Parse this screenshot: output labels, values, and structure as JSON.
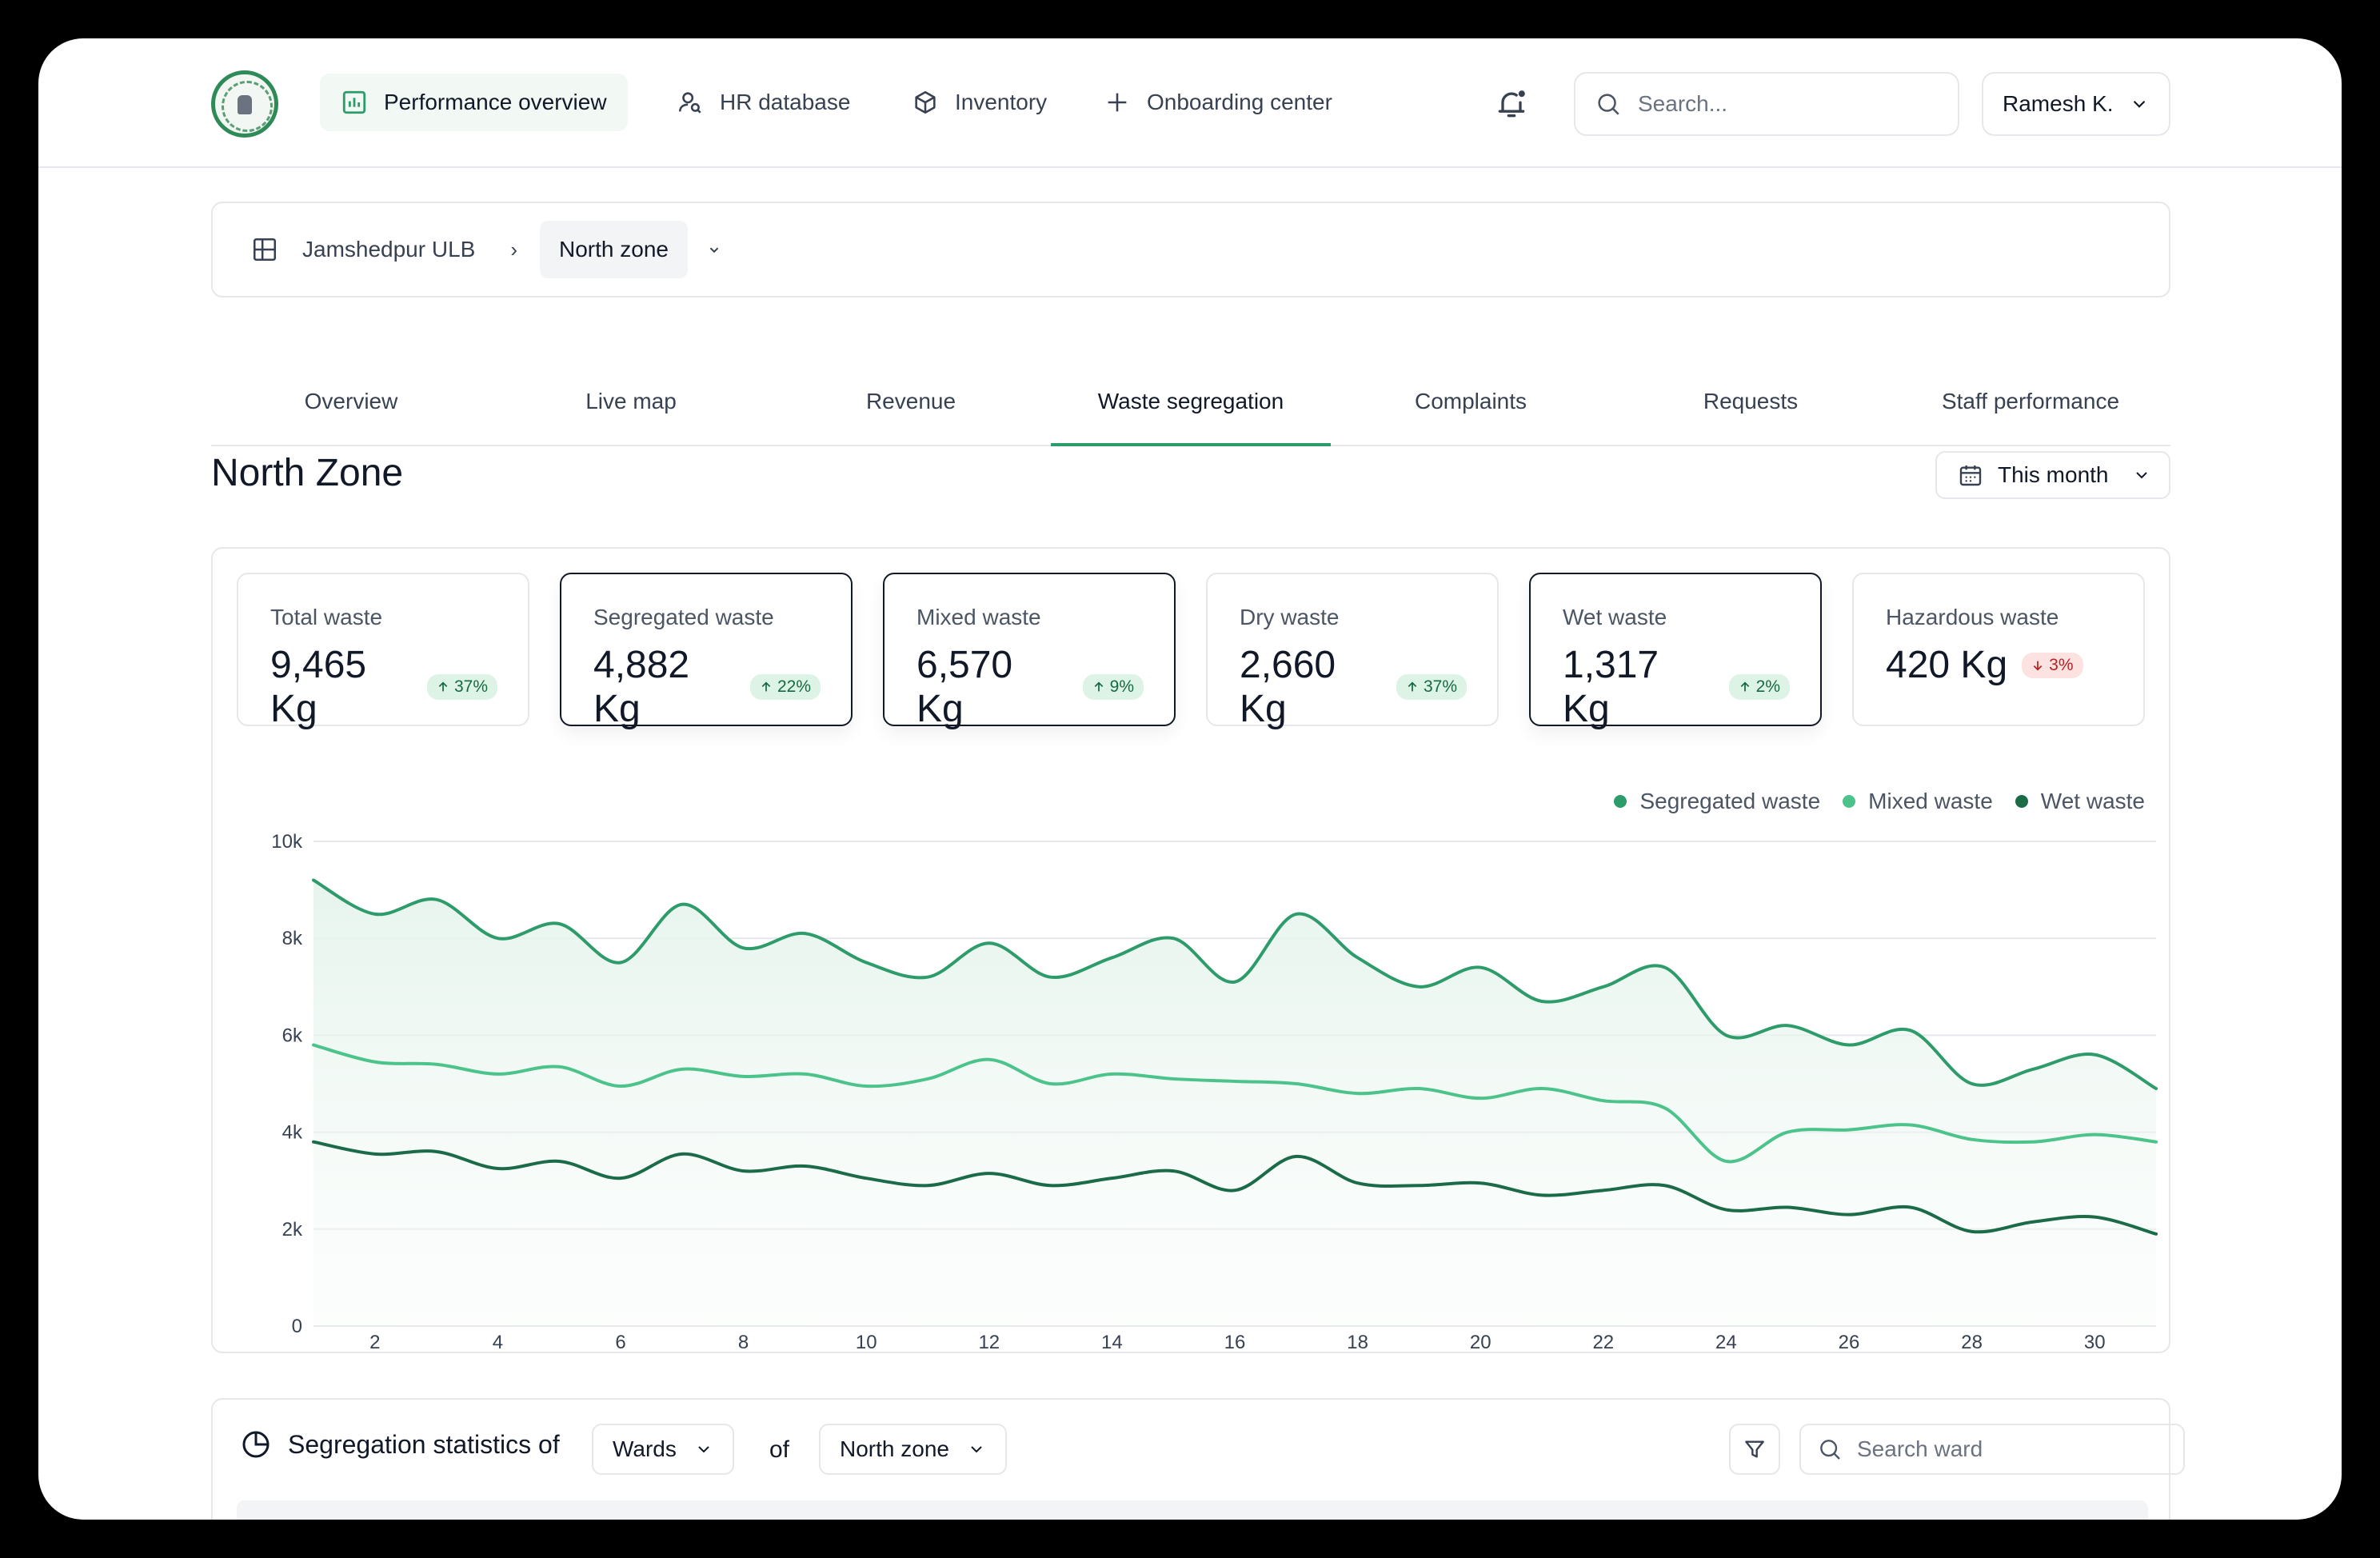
{
  "nav": {
    "items": [
      {
        "label": "Performance overview",
        "icon": "bar-chart-icon",
        "active": true
      },
      {
        "label": "HR database",
        "icon": "user-search-icon",
        "active": false
      },
      {
        "label": "Inventory",
        "icon": "box-icon",
        "active": false
      },
      {
        "label": "Onboarding center",
        "icon": "plus-icon",
        "active": false
      }
    ],
    "search_placeholder": "Search...",
    "user": "Ramesh K."
  },
  "breadcrumb": {
    "root": "Jamshedpur ULB",
    "current": "North zone"
  },
  "tabs": [
    "Overview",
    "Live map",
    "Revenue",
    "Waste segregation",
    "Complaints",
    "Requests",
    "Staff performance"
  ],
  "active_tab": "Waste segregation",
  "page_title": "North Zone",
  "period": "This month",
  "stats": [
    {
      "label": "Total waste",
      "value": "9,465 Kg",
      "change": "37%",
      "direction": "up",
      "selected": false
    },
    {
      "label": "Segregated waste",
      "value": "4,882 Kg",
      "change": "22%",
      "direction": "up",
      "selected": true
    },
    {
      "label": "Mixed waste",
      "value": "6,570 Kg",
      "change": "9%",
      "direction": "up",
      "selected": true
    },
    {
      "label": "Dry waste",
      "value": "2,660 Kg",
      "change": "37%",
      "direction": "up",
      "selected": false
    },
    {
      "label": "Wet waste",
      "value": "1,317 Kg",
      "change": "2%",
      "direction": "up",
      "selected": true
    },
    {
      "label": "Hazardous waste",
      "value": "420 Kg",
      "change": "3%",
      "direction": "down",
      "selected": false
    }
  ],
  "colors": {
    "accent": "#2e9b6a",
    "segregated": "#2e9b6a",
    "mixed": "#4cc38a",
    "wet": "#1b6b48"
  },
  "chart_data": {
    "type": "line",
    "x": [
      1,
      2,
      3,
      4,
      5,
      6,
      7,
      8,
      9,
      10,
      11,
      12,
      13,
      14,
      15,
      16,
      17,
      18,
      19,
      20,
      21,
      22,
      23,
      24,
      25,
      26,
      27,
      28,
      29,
      30,
      31
    ],
    "x_ticks": [
      2,
      4,
      6,
      8,
      10,
      12,
      14,
      16,
      18,
      20,
      22,
      24,
      26,
      28,
      30
    ],
    "y_ticks": [
      "0",
      "2k",
      "4k",
      "6k",
      "8k",
      "10k"
    ],
    "ylim": [
      0,
      10000
    ],
    "xlim": [
      1,
      31
    ],
    "grid": true,
    "legend_position": "top-right",
    "series": [
      {
        "name": "Segregated waste",
        "color": "#2e9b6a",
        "values": [
          9200,
          8500,
          8800,
          8000,
          8300,
          7500,
          8700,
          7800,
          8100,
          7500,
          7200,
          7900,
          7200,
          7600,
          8000,
          7100,
          8500,
          7600,
          7000,
          7400,
          6700,
          7000,
          7400,
          6000,
          6200,
          5800,
          6100,
          5000,
          5300,
          5600,
          4900
        ]
      },
      {
        "name": "Mixed waste",
        "color": "#4cc38a",
        "values": [
          5800,
          5450,
          5400,
          5200,
          5350,
          4950,
          5300,
          5150,
          5200,
          4950,
          5100,
          5500,
          5000,
          5200,
          5100,
          5050,
          5000,
          4800,
          4900,
          4700,
          4900,
          4650,
          4500,
          3400,
          4000,
          4050,
          4150,
          3850,
          3800,
          3950,
          3800
        ]
      },
      {
        "name": "Wet waste",
        "color": "#1b6b48",
        "values": [
          3800,
          3550,
          3600,
          3250,
          3400,
          3050,
          3550,
          3200,
          3300,
          3050,
          2900,
          3150,
          2900,
          3050,
          3200,
          2800,
          3500,
          2950,
          2900,
          2950,
          2700,
          2800,
          2900,
          2400,
          2450,
          2300,
          2450,
          1950,
          2150,
          2250,
          1900
        ]
      }
    ]
  },
  "segregation": {
    "title": "Segregation statistics of",
    "group_by": "Wards",
    "of_label": "of",
    "zone": "North zone",
    "search_placeholder": "Search ward"
  }
}
